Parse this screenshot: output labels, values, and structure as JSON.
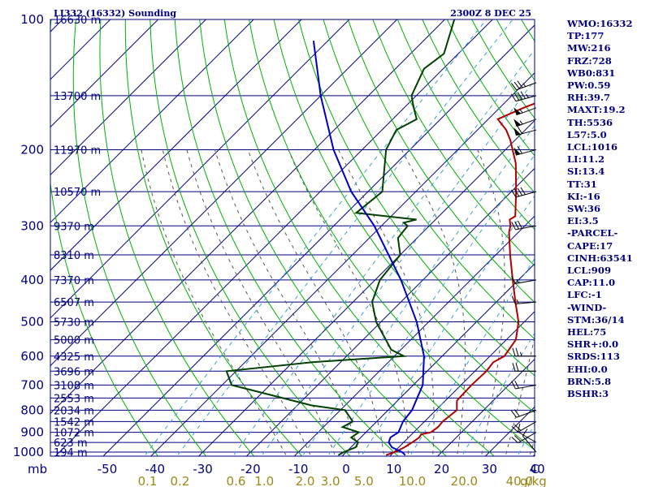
{
  "header": {
    "station": "LI332 (16332) Sounding",
    "time": "2300Z  8 DEC 25"
  },
  "indices": [
    "WMO:16332",
    "TP:177",
    "MW:216",
    "FRZ:728",
    "WB0:831",
    "PW:0.59",
    "RH:39.7",
    "MAXT:19.2",
    "TH:5536",
    "L57:5.0",
    "LCL:1016",
    "LI:11.2",
    "SI:13.4",
    "TT:31",
    "KI:-16",
    "SW:36",
    "EI:3.5",
    "-PARCEL-",
    "CAPE:17",
    "CINH:63541",
    "LCL:909",
    "CAP:11.0",
    "LFC:-1",
    "-WIND-",
    "STM:36/14",
    "HEL:75",
    "SHR+:0.0",
    "SRDS:113",
    "EHI:0.0",
    "BRN:5.8",
    "BSHR:3"
  ],
  "chart_data": {
    "type": "line",
    "title": "LI332 (16332) Sounding",
    "y_axis_label": "mb",
    "x_axis_unit": "g/kg",
    "pressure_ticks": [
      100,
      200,
      300,
      400,
      500,
      600,
      700,
      800,
      900,
      1000
    ],
    "temperature_ticks": [
      "-50",
      "-40",
      "-30",
      "-20",
      "-10",
      "0",
      "10",
      "20",
      "30",
      "40"
    ],
    "temperature_tick_values": [
      -50,
      -40,
      -30,
      -20,
      -10,
      0,
      10,
      20,
      30,
      40
    ],
    "corner_label": "C",
    "mixing_ratio_ticks": [
      {
        "label": "0.1",
        "value": 0.1
      },
      {
        "label": "0.2",
        "value": 0.2
      },
      {
        "label": "0.6",
        "value": 0.6
      },
      {
        "label": "1.0",
        "value": 1.0
      },
      {
        "label": "2.0",
        "value": 2.0
      },
      {
        "label": "3.0",
        "value": 3.0
      },
      {
        "label": "5.0",
        "value": 5.0
      },
      {
        "label": "10.0",
        "value": 10.0
      },
      {
        "label": "20.0",
        "value": 20.0
      },
      {
        "label": "40.0",
        "value": 40.0
      }
    ],
    "height_labels": [
      {
        "text": "16630 m",
        "p": 100
      },
      {
        "text": "13700 m",
        "p": 150
      },
      {
        "text": "11970 m",
        "p": 200
      },
      {
        "text": "10570 m",
        "p": 250
      },
      {
        "text": "9370 m",
        "p": 300
      },
      {
        "text": "8310 m",
        "p": 350
      },
      {
        "text": "7370 m",
        "p": 400
      },
      {
        "text": "6507 m",
        "p": 450
      },
      {
        "text": "5730 m",
        "p": 500
      },
      {
        "text": "5000 m",
        "p": 550
      },
      {
        "text": "4325 m",
        "p": 600
      },
      {
        "text": "3696 m",
        "p": 650
      },
      {
        "text": "3108 m",
        "p": 700
      },
      {
        "text": "2553 m",
        "p": 750
      },
      {
        "text": "2034 m",
        "p": 800
      },
      {
        "text": "1542 m",
        "p": 850
      },
      {
        "text": "1072 m",
        "p": 900
      },
      {
        "text": "623 m",
        "p": 950
      },
      {
        "text": "194 m",
        "p": 1000
      }
    ],
    "series": [
      {
        "name": "temperature",
        "color": "#b00000",
        "points": [
          [
            1016,
            9.0
          ],
          [
            1000,
            10.2
          ],
          [
            975,
            11.2
          ],
          [
            950,
            11.8
          ],
          [
            925,
            12.2
          ],
          [
            910,
            12.0
          ],
          [
            900,
            13.6
          ],
          [
            875,
            14.0
          ],
          [
            850,
            13.8
          ],
          [
            800,
            14.4
          ],
          [
            760,
            12.4
          ],
          [
            700,
            12.2
          ],
          [
            650,
            12.4
          ],
          [
            620,
            12.0
          ],
          [
            600,
            13.0
          ],
          [
            550,
            12.0
          ],
          [
            500,
            8.8
          ],
          [
            450,
            4.0
          ],
          [
            400,
            -1.2
          ],
          [
            350,
            -7.0
          ],
          [
            310,
            -12.0
          ],
          [
            300,
            -13.0
          ],
          [
            290,
            -14.5
          ],
          [
            285,
            -14.0
          ],
          [
            250,
            -19.0
          ],
          [
            215,
            -25.0
          ],
          [
            190,
            -31.0
          ],
          [
            180,
            -34.0
          ],
          [
            170,
            -38.0
          ],
          [
            160,
            -35.0
          ],
          [
            150,
            -31.0
          ],
          [
            140,
            -30.0
          ],
          [
            130,
            -31.0
          ],
          [
            120,
            -32.0
          ],
          [
            112,
            -31.5
          ],
          [
            100,
            -37.0
          ]
        ]
      },
      {
        "name": "dewpoint",
        "color": "#004000",
        "points": [
          [
            1016,
            -1.0
          ],
          [
            1000,
            -0.5
          ],
          [
            975,
            1.0
          ],
          [
            950,
            0.5
          ],
          [
            925,
            -2.0
          ],
          [
            900,
            -1.5
          ],
          [
            875,
            -6.0
          ],
          [
            850,
            -5.0
          ],
          [
            800,
            -9.0
          ],
          [
            780,
            -17.0
          ],
          [
            700,
            -38.0
          ],
          [
            650,
            -42.0
          ],
          [
            620,
            -26.0
          ],
          [
            600,
            -8.0
          ],
          [
            580,
            -12.0
          ],
          [
            500,
            -21.0
          ],
          [
            450,
            -26.0
          ],
          [
            400,
            -29.0
          ],
          [
            350,
            -30.0
          ],
          [
            320,
            -34.0
          ],
          [
            300,
            -34.5
          ],
          [
            295,
            -36.0
          ],
          [
            290,
            -34.0
          ],
          [
            280,
            -48.0
          ],
          [
            250,
            -47.0
          ],
          [
            200,
            -55.0
          ],
          [
            180,
            -57.0
          ],
          [
            170,
            -55.0
          ],
          [
            160,
            -58.0
          ],
          [
            150,
            -61.0
          ],
          [
            130,
            -64.0
          ],
          [
            120,
            -63.0
          ],
          [
            100,
            -68.0
          ]
        ]
      },
      {
        "name": "parcel",
        "color": "#0000c0",
        "points": [
          [
            1016,
            13.0
          ],
          [
            1000,
            11.7
          ],
          [
            975,
            8.6
          ],
          [
            950,
            6.9
          ],
          [
            925,
            6.2
          ],
          [
            900,
            6.8
          ],
          [
            850,
            5.5
          ],
          [
            800,
            5.0
          ],
          [
            700,
            2.0
          ],
          [
            600,
            -3.8
          ],
          [
            500,
            -12.5
          ],
          [
            400,
            -24.6
          ],
          [
            300,
            -41.5
          ],
          [
            250,
            -53.5
          ],
          [
            200,
            -66.0
          ],
          [
            150,
            -80.0
          ],
          [
            112,
            -93.0
          ]
        ]
      }
    ],
    "wind_barbs": [
      {
        "p": 1000,
        "dir": 320,
        "kt": 10
      },
      {
        "p": 950,
        "dir": 300,
        "kt": 10
      },
      {
        "p": 900,
        "dir": 240,
        "kt": 20
      },
      {
        "p": 850,
        "dir": 240,
        "kt": 20
      },
      {
        "p": 800,
        "dir": 250,
        "kt": 20
      },
      {
        "p": 700,
        "dir": 260,
        "kt": 20
      },
      {
        "p": 650,
        "dir": 270,
        "kt": 20
      },
      {
        "p": 600,
        "dir": 270,
        "kt": 25
      },
      {
        "p": 450,
        "dir": 265,
        "kt": 15
      },
      {
        "p": 400,
        "dir": 260,
        "kt": 15
      },
      {
        "p": 300,
        "dir": 260,
        "kt": 30
      },
      {
        "p": 250,
        "dir": 255,
        "kt": 40
      },
      {
        "p": 200,
        "dir": 255,
        "kt": 60
      },
      {
        "p": 180,
        "dir": 255,
        "kt": 60
      },
      {
        "p": 170,
        "dir": 250,
        "kt": 55
      },
      {
        "p": 160,
        "dir": 250,
        "kt": 55
      },
      {
        "p": 150,
        "dir": 255,
        "kt": 45
      },
      {
        "p": 140,
        "dir": 250,
        "kt": 35
      }
    ],
    "grid": true
  }
}
